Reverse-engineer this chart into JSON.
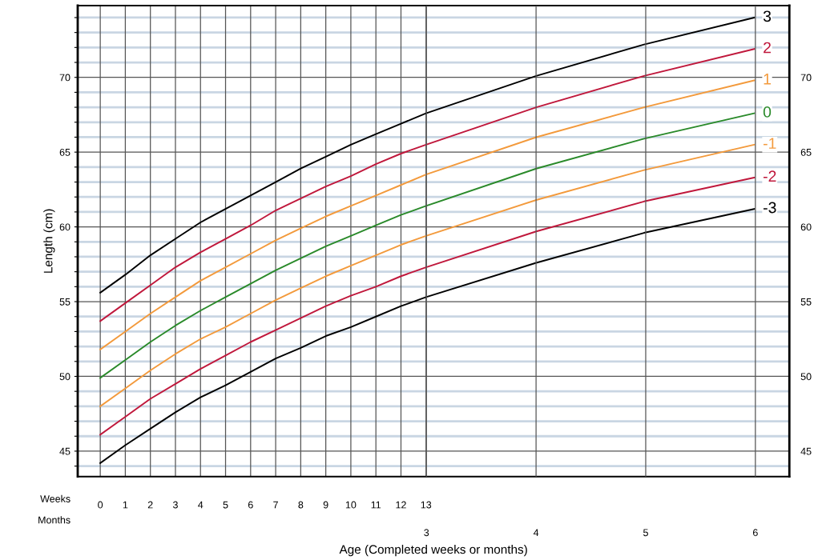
{
  "chart_data": {
    "type": "line",
    "xlabel": "Age (Completed weeks or months)",
    "ylabel": "Length (cm)",
    "x": [
      0,
      1,
      2,
      3,
      4,
      5,
      6,
      7,
      8,
      9,
      10,
      11,
      12,
      13,
      17.4,
      21.7,
      26.1
    ],
    "series": [
      {
        "name": "3",
        "color": "#000000",
        "values": [
          55.6,
          56.8,
          58.1,
          59.2,
          60.3,
          61.2,
          62.1,
          63.0,
          63.9,
          64.7,
          65.5,
          66.2,
          66.9,
          67.6,
          70.1,
          72.2,
          74.0
        ]
      },
      {
        "name": "2",
        "color": "#c0183c",
        "values": [
          53.7,
          54.9,
          56.1,
          57.3,
          58.3,
          59.2,
          60.1,
          61.1,
          61.9,
          62.7,
          63.4,
          64.2,
          64.9,
          65.5,
          68.0,
          70.1,
          71.9
        ]
      },
      {
        "name": "1",
        "color": "#f39a3c",
        "values": [
          51.8,
          53.0,
          54.2,
          55.3,
          56.4,
          57.3,
          58.2,
          59.1,
          59.9,
          60.7,
          61.4,
          62.1,
          62.8,
          63.5,
          66.0,
          68.0,
          69.8
        ]
      },
      {
        "name": "0",
        "color": "#2a8a2a",
        "values": [
          49.9,
          51.1,
          52.3,
          53.4,
          54.4,
          55.3,
          56.2,
          57.1,
          57.9,
          58.7,
          59.4,
          60.1,
          60.8,
          61.4,
          63.9,
          65.9,
          67.6
        ]
      },
      {
        "name": "-1",
        "color": "#f39a3c",
        "values": [
          48.0,
          49.2,
          50.4,
          51.5,
          52.5,
          53.3,
          54.2,
          55.1,
          55.9,
          56.7,
          57.4,
          58.1,
          58.8,
          59.4,
          61.8,
          63.8,
          65.5
        ]
      },
      {
        "name": "-2",
        "color": "#c0183c",
        "values": [
          46.1,
          47.3,
          48.5,
          49.5,
          50.5,
          51.4,
          52.3,
          53.1,
          53.9,
          54.7,
          55.4,
          56.0,
          56.7,
          57.3,
          59.7,
          61.7,
          63.3
        ]
      },
      {
        "name": "-3",
        "color": "#000000",
        "values": [
          44.2,
          45.4,
          46.5,
          47.6,
          48.6,
          49.4,
          50.3,
          51.2,
          51.9,
          52.7,
          53.3,
          54.0,
          54.7,
          55.3,
          57.6,
          59.6,
          61.2
        ]
      }
    ],
    "xlim": [
      -0.9,
      27.5
    ],
    "xticks": [
      0,
      1,
      2,
      3,
      4,
      5,
      6,
      7,
      8,
      9,
      10,
      11,
      12,
      13
    ],
    "x2lim": [
      -0.18,
      6.31
    ],
    "x2ticks": [
      3,
      4,
      5,
      6
    ],
    "ylim": [
      43.3,
      74.8
    ],
    "yticks": [
      {
        "value": 44,
        "label": null
      },
      45,
      {
        "value": 46,
        "label": null
      },
      {
        "value": 47,
        "label": null
      },
      {
        "value": 48,
        "label": null
      },
      {
        "value": 49,
        "label": null
      },
      50,
      {
        "value": 51,
        "label": null
      },
      {
        "value": 52,
        "label": null
      },
      {
        "value": 53,
        "label": null
      },
      {
        "value": 54,
        "label": null
      },
      55,
      {
        "value": 56,
        "label": null
      },
      {
        "value": 57,
        "label": null
      },
      {
        "value": 58,
        "label": null
      },
      {
        "value": 59,
        "label": null
      },
      60,
      {
        "value": 61,
        "label": null
      },
      {
        "value": 62,
        "label": null
      },
      {
        "value": 63,
        "label": null
      },
      {
        "value": 64,
        "label": null
      },
      65,
      {
        "value": 66,
        "label": null
      },
      {
        "value": 67,
        "label": null
      },
      {
        "value": 68,
        "label": null
      },
      {
        "value": 69,
        "label": null
      },
      70,
      {
        "value": 71,
        "label": null
      },
      {
        "value": 72,
        "label": null
      },
      {
        "value": 73,
        "label": null
      },
      {
        "value": 74,
        "label": null
      }
    ],
    "y2lim": [
      43.3,
      74.8
    ],
    "y2ticks": [
      45,
      50,
      55,
      60,
      65,
      70
    ],
    "grid": true,
    "line_style": "solid",
    "annotations": [
      "Weeks",
      "Months"
    ]
  }
}
